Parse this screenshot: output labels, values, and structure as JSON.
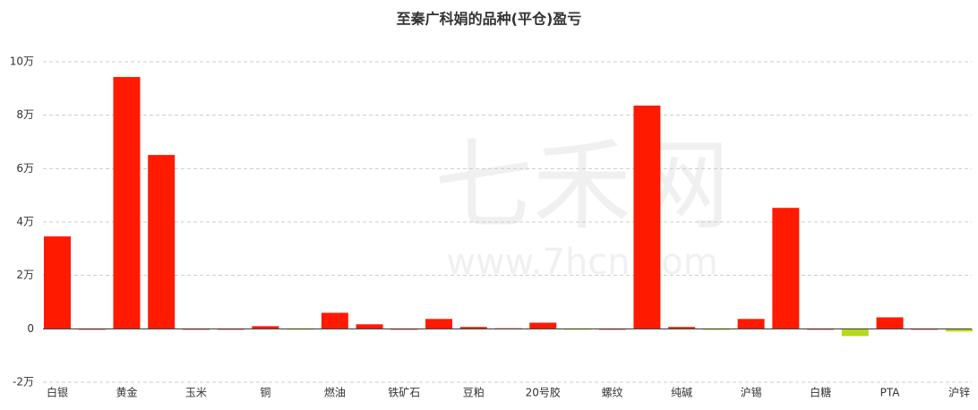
{
  "chart_data": {
    "type": "bar",
    "title": "至秦广科娟的品种(平仓)盈亏",
    "watermark": "七禾网",
    "watermark_url": "www.7hcn.com",
    "categories": [
      "白银",
      null,
      "黄金",
      null,
      "玉米",
      null,
      "铜",
      null,
      "燃油",
      null,
      "铁矿石",
      null,
      "豆粕",
      null,
      "20号胶",
      null,
      "螺纹",
      null,
      "纯碱",
      null,
      "沪锡",
      null,
      "白糖",
      null,
      "PTA",
      null,
      "沪锌"
    ],
    "values": [
      34600,
      0,
      94300,
      65100,
      0,
      0,
      1000,
      -300,
      6000,
      1700,
      0,
      3700,
      700,
      200,
      2300,
      -300,
      0,
      83600,
      700,
      -400,
      3700,
      45300,
      0,
      -2700,
      4300,
      0,
      -1000
    ],
    "positive_color": "#ff1a00",
    "negative_color": "#b5d91a",
    "ylim": [
      -20000,
      100000
    ],
    "yticks": [
      {
        "value": -20000,
        "label": "-2万"
      },
      0,
      {
        "value": 20000,
        "label": "2万"
      },
      {
        "value": 40000,
        "label": "4万"
      },
      {
        "value": 60000,
        "label": "6万"
      },
      {
        "value": 80000,
        "label": "8万"
      },
      {
        "value": 100000,
        "label": "10万"
      }
    ],
    "grid": true
  }
}
